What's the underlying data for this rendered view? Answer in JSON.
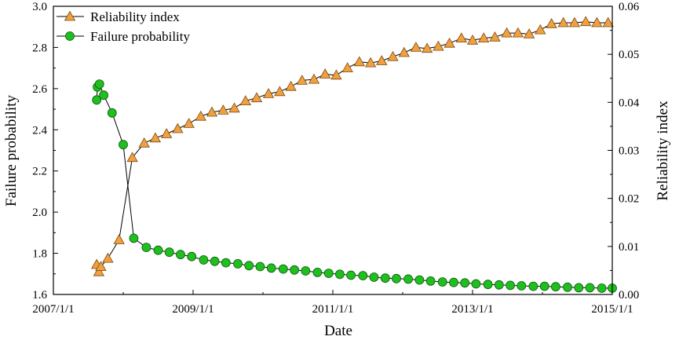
{
  "chart_data": {
    "type": "line",
    "xlabel": "Date",
    "ylabel_left": "Failure probability",
    "ylabel_right": "Reliability index",
    "x_ticks": [
      "2007/1/1",
      "2009/1/1",
      "2011/1/1",
      "2013/1/1",
      "2015/1/1"
    ],
    "x_range": [
      2007.0,
      2015.0
    ],
    "left_ylim": [
      1.6,
      3.0
    ],
    "left_ticks": [
      "1.6",
      "1.8",
      "2.0",
      "2.2",
      "2.4",
      "2.6",
      "2.8",
      "3.0"
    ],
    "right_ylim": [
      0.0,
      0.06
    ],
    "right_ticks": [
      "0.00",
      "0.01",
      "0.02",
      "0.03",
      "0.04",
      "0.05",
      "0.06"
    ],
    "legend": [
      "Reliability index",
      "Failure probability"
    ],
    "colors": {
      "reliability": "#F0A040",
      "failure": "#1FBF1F",
      "line": "#000000"
    },
    "series": [
      {
        "name": "Reliability index",
        "axis": "left",
        "marker": "triangle",
        "x": [
          2007.62,
          2007.65,
          2007.68,
          2007.78,
          2007.94,
          2008.13,
          2008.3,
          2008.46,
          2008.62,
          2008.78,
          2008.94,
          2009.11,
          2009.27,
          2009.43,
          2009.59,
          2009.75,
          2009.91,
          2010.08,
          2010.24,
          2010.4,
          2010.56,
          2010.73,
          2010.89,
          2011.05,
          2011.21,
          2011.38,
          2011.54,
          2011.7,
          2011.86,
          2012.02,
          2012.19,
          2012.35,
          2012.51,
          2012.67,
          2012.84,
          2013.0,
          2013.16,
          2013.32,
          2013.49,
          2013.65,
          2013.81,
          2013.97,
          2014.13,
          2014.3,
          2014.46,
          2014.62,
          2014.78,
          2014.94
        ],
        "values": [
          1.745,
          1.71,
          1.735,
          1.775,
          1.865,
          2.265,
          2.335,
          2.36,
          2.38,
          2.405,
          2.43,
          2.465,
          2.485,
          2.495,
          2.505,
          2.54,
          2.555,
          2.575,
          2.585,
          2.61,
          2.64,
          2.645,
          2.67,
          2.665,
          2.7,
          2.73,
          2.725,
          2.735,
          2.755,
          2.775,
          2.8,
          2.795,
          2.805,
          2.82,
          2.845,
          2.835,
          2.845,
          2.85,
          2.87,
          2.87,
          2.865,
          2.885,
          2.915,
          2.92,
          2.92,
          2.925,
          2.92,
          2.92
        ]
      },
      {
        "name": "Failure probability",
        "axis": "right",
        "marker": "circle",
        "x": [
          2007.62,
          2007.63,
          2007.66,
          2007.72,
          2007.84,
          2008.0,
          2008.15,
          2008.33,
          2008.5,
          2008.66,
          2008.82,
          2008.98,
          2009.15,
          2009.31,
          2009.47,
          2009.64,
          2009.8,
          2009.96,
          2010.12,
          2010.29,
          2010.45,
          2010.61,
          2010.78,
          2010.94,
          2011.1,
          2011.26,
          2011.43,
          2011.59,
          2011.75,
          2011.91,
          2012.08,
          2012.24,
          2012.4,
          2012.57,
          2012.73,
          2012.89,
          2013.05,
          2013.22,
          2013.38,
          2013.54,
          2013.7,
          2013.87,
          2014.03,
          2014.19,
          2014.36,
          2014.52,
          2014.68,
          2014.85,
          2015.0
        ],
        "values": [
          0.0405,
          0.0432,
          0.0438,
          0.0415,
          0.0378,
          0.0312,
          0.0117,
          0.0098,
          0.0092,
          0.0088,
          0.0083,
          0.0079,
          0.0072,
          0.0069,
          0.0066,
          0.0064,
          0.006,
          0.0058,
          0.0055,
          0.0053,
          0.0051,
          0.0049,
          0.0046,
          0.0044,
          0.0042,
          0.004,
          0.0039,
          0.0036,
          0.0034,
          0.0033,
          0.0032,
          0.003,
          0.0028,
          0.0026,
          0.0025,
          0.0024,
          0.0022,
          0.0021,
          0.002,
          0.0019,
          0.0018,
          0.0017,
          0.0017,
          0.0016,
          0.0015,
          0.0014,
          0.0014,
          0.0013,
          0.0013
        ]
      }
    ]
  }
}
